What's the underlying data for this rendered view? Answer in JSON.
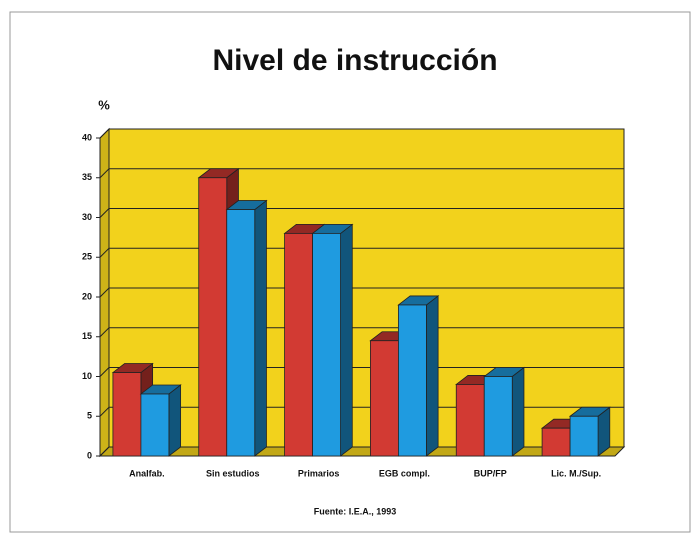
{
  "chart_data": {
    "type": "bar",
    "title": "Nivel de instrucción",
    "y_label": "%",
    "source": "Fuente: I.E.A., 1993",
    "categories": [
      "Analfab.",
      "Sin estudios",
      "Primarios",
      "EGB compl.",
      "BUP/FP",
      "Lic. M./Sup."
    ],
    "series": [
      {
        "color": "#d23a33",
        "values": [
          10.5,
          35,
          28,
          14.5,
          9,
          3.5
        ]
      },
      {
        "color": "#1f9be0",
        "values": [
          7.8,
          31,
          28,
          19,
          10,
          5
        ]
      }
    ],
    "ylim": [
      0,
      40
    ],
    "yticks": [
      0,
      5,
      10,
      15,
      20,
      25,
      30,
      35,
      40
    ],
    "grid": true,
    "background": "#f2d21c"
  }
}
